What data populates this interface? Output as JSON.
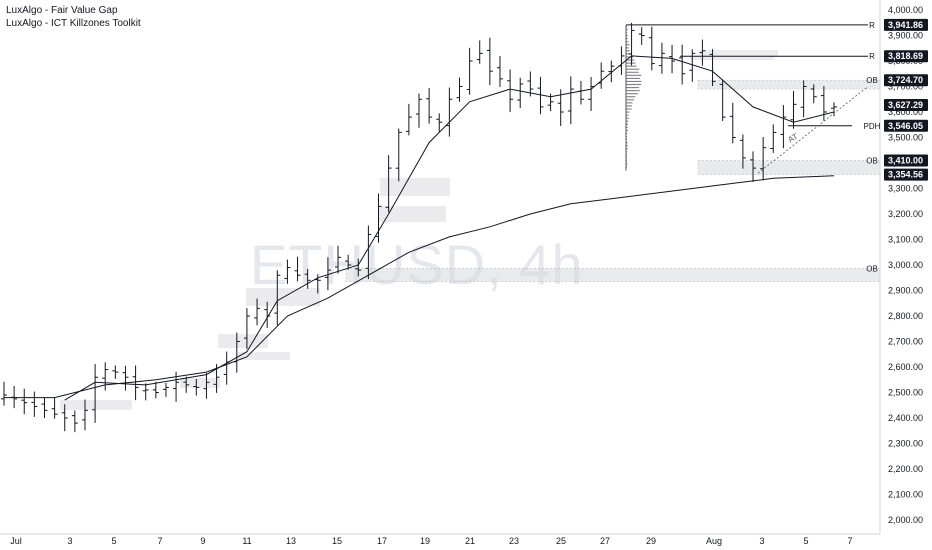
{
  "indicators": [
    "LuxAlgo - Fair Value Gap",
    "LuxAlgo - ICT Killzones Toolkit"
  ],
  "watermark": "ETHUSD, 4h",
  "chart_data": {
    "type": "candlestick",
    "symbol": "ETHUSD",
    "timeframe": "4h",
    "ylim": [
      1950,
      4050
    ],
    "y_ticks": [
      "2,000.00",
      "2,100.00",
      "2,200.00",
      "2,300.00",
      "2,400.00",
      "2,500.00",
      "2,600.00",
      "2,700.00",
      "2,800.00",
      "2,900.00",
      "3,000.00",
      "3,100.00",
      "3,200.00",
      "3,300.00",
      "3,400.00",
      "3,500.00",
      "3,600.00",
      "3,700.00",
      "3,800.00",
      "3,900.00",
      "4,000.00"
    ],
    "x_ticks": [
      "Jul",
      "3",
      "5",
      "7",
      "9",
      "11",
      "13",
      "15",
      "17",
      "19",
      "21",
      "23",
      "25",
      "27",
      "29",
      "Aug",
      "3",
      "5",
      "7"
    ],
    "price_path": [
      [
        0,
        2490
      ],
      [
        2,
        2460
      ],
      [
        4,
        2430
      ],
      [
        6,
        2400
      ],
      [
        7,
        2380
      ],
      [
        8,
        2430
      ],
      [
        9,
        2560
      ],
      [
        10,
        2590
      ],
      [
        11,
        2580
      ],
      [
        12,
        2560
      ],
      [
        13,
        2520
      ],
      [
        14,
        2510
      ],
      [
        15,
        2500
      ],
      [
        16,
        2520
      ],
      [
        17,
        2540
      ],
      [
        18,
        2530
      ],
      [
        19,
        2520
      ],
      [
        20,
        2540
      ],
      [
        21,
        2560
      ],
      [
        22,
        2620
      ],
      [
        23,
        2700
      ],
      [
        24,
        2800
      ],
      [
        25,
        2830
      ],
      [
        26,
        2800
      ],
      [
        27,
        2960
      ],
      [
        28,
        2990
      ],
      [
        29,
        2960
      ],
      [
        30,
        2940
      ],
      [
        31,
        2940
      ],
      [
        32,
        2980
      ],
      [
        33,
        3030
      ],
      [
        34,
        3000
      ],
      [
        35,
        2980
      ],
      [
        36,
        3120
      ],
      [
        37,
        3230
      ],
      [
        38,
        3380
      ],
      [
        39,
        3520
      ],
      [
        40,
        3580
      ],
      [
        41,
        3650
      ],
      [
        42,
        3580
      ],
      [
        43,
        3560
      ],
      [
        44,
        3650
      ],
      [
        45,
        3700
      ],
      [
        46,
        3800
      ],
      [
        47,
        3830
      ],
      [
        48,
        3760
      ],
      [
        49,
        3730
      ],
      [
        50,
        3650
      ],
      [
        51,
        3710
      ],
      [
        52,
        3690
      ],
      [
        53,
        3620
      ],
      [
        54,
        3640
      ],
      [
        55,
        3600
      ],
      [
        56,
        3690
      ],
      [
        57,
        3650
      ],
      [
        58,
        3700
      ],
      [
        59,
        3760
      ],
      [
        60,
        3780
      ],
      [
        61,
        3820
      ],
      [
        62,
        3920
      ],
      [
        63,
        3900
      ],
      [
        64,
        3790
      ],
      [
        65,
        3830
      ],
      [
        66,
        3800
      ],
      [
        67,
        3750
      ],
      [
        68,
        3830
      ],
      [
        69,
        3840
      ],
      [
        70,
        3720
      ],
      [
        71,
        3580
      ],
      [
        72,
        3500
      ],
      [
        73,
        3420
      ],
      [
        74,
        3380
      ],
      [
        75,
        3460
      ],
      [
        76,
        3520
      ],
      [
        77,
        3580
      ],
      [
        78,
        3630
      ],
      [
        79,
        3700
      ],
      [
        80,
        3660
      ],
      [
        81,
        3600
      ],
      [
        82,
        3620
      ]
    ],
    "series": [
      {
        "name": "",
        "type": "line",
        "values": [
          [
            0,
            2480
          ],
          [
            5,
            2480
          ],
          [
            10,
            2530
          ],
          [
            15,
            2550
          ],
          [
            20,
            2580
          ],
          [
            24,
            2640
          ],
          [
            28,
            2800
          ],
          [
            32,
            2870
          ],
          [
            36,
            2960
          ],
          [
            40,
            3050
          ],
          [
            44,
            3110
          ],
          [
            48,
            3150
          ],
          [
            52,
            3200
          ],
          [
            56,
            3240
          ],
          [
            60,
            3260
          ],
          [
            64,
            3280
          ],
          [
            68,
            3300
          ],
          [
            72,
            3320
          ],
          [
            76,
            3340
          ],
          [
            82,
            3350
          ]
        ]
      },
      {
        "name": "",
        "type": "line",
        "values": [
          [
            6,
            2470
          ],
          [
            9,
            2540
          ],
          [
            14,
            2530
          ],
          [
            20,
            2570
          ],
          [
            24,
            2660
          ],
          [
            27,
            2860
          ],
          [
            31,
            2950
          ],
          [
            35,
            3000
          ],
          [
            38,
            3200
          ],
          [
            42,
            3480
          ],
          [
            46,
            3640
          ],
          [
            50,
            3690
          ],
          [
            54,
            3660
          ],
          [
            58,
            3690
          ],
          [
            62,
            3820
          ],
          [
            66,
            3810
          ],
          [
            70,
            3760
          ],
          [
            74,
            3620
          ],
          [
            78,
            3560
          ],
          [
            82,
            3600
          ]
        ]
      }
    ],
    "price_labels": [
      {
        "label": "R",
        "value": "3,941.86"
      },
      {
        "label": "R",
        "value": "3,818.69"
      },
      {
        "label": "OB",
        "value": "3,724.70"
      },
      {
        "label": "",
        "value": "3,627.29"
      },
      {
        "label": "PDH",
        "value": "3,546.05"
      },
      {
        "label": "OB",
        "value": "3,410.00"
      },
      {
        "label": "",
        "value": "3,354.56"
      },
      {
        "label": "OB",
        "value": "2,987.00"
      }
    ],
    "annotations": [
      "AT"
    ],
    "grid": false
  }
}
